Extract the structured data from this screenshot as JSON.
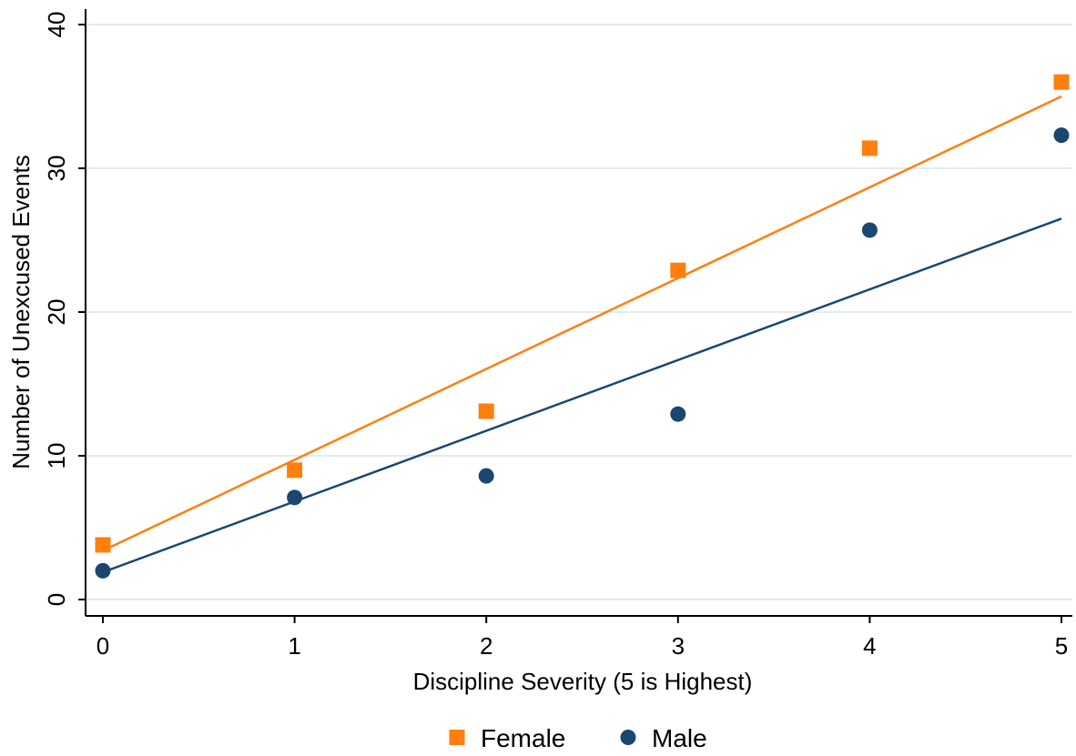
{
  "chart_data": {
    "type": "scatter",
    "title": "",
    "xlabel": "Discipline Severity (5 is Highest)",
    "ylabel": "Number of Unexcused Events",
    "xlim": [
      0,
      5
    ],
    "ylim": [
      0,
      40
    ],
    "xticks": [
      "0",
      "1",
      "2",
      "3",
      "4",
      "5"
    ],
    "yticks": [
      "0",
      "10",
      "20",
      "30",
      "40"
    ],
    "grid": "horizontal",
    "legend_position": "bottom",
    "series": [
      {
        "name": "Female",
        "marker": "square",
        "color": "#ff7f0e",
        "x": [
          0,
          1,
          2,
          3,
          4,
          5
        ],
        "y": [
          3.8,
          9.0,
          13.1,
          22.9,
          31.4,
          36.0
        ],
        "fit": [
          3.4,
          35.0
        ]
      },
      {
        "name": "Male",
        "marker": "circle",
        "color": "#1a476f",
        "x": [
          0,
          1,
          2,
          3,
          4,
          5
        ],
        "y": [
          2.0,
          7.1,
          8.6,
          12.9,
          25.7,
          32.3
        ],
        "fit": [
          1.9,
          26.5
        ]
      }
    ]
  }
}
